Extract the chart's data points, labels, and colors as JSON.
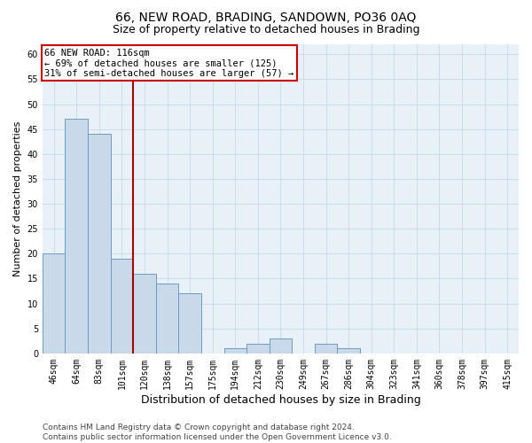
{
  "title1": "66, NEW ROAD, BRADING, SANDOWN, PO36 0AQ",
  "title2": "Size of property relative to detached houses in Brading",
  "xlabel": "Distribution of detached houses by size in Brading",
  "ylabel": "Number of detached properties",
  "categories": [
    "46sqm",
    "64sqm",
    "83sqm",
    "101sqm",
    "120sqm",
    "138sqm",
    "157sqm",
    "175sqm",
    "194sqm",
    "212sqm",
    "230sqm",
    "249sqm",
    "267sqm",
    "286sqm",
    "304sqm",
    "323sqm",
    "341sqm",
    "360sqm",
    "378sqm",
    "397sqm",
    "415sqm"
  ],
  "values": [
    20,
    47,
    44,
    19,
    16,
    14,
    12,
    0,
    1,
    2,
    3,
    0,
    2,
    1,
    0,
    0,
    0,
    0,
    0,
    0,
    0
  ],
  "bar_color": "#c9d9ea",
  "bar_edge_color": "#6b9dc2",
  "vline_color": "#aa0000",
  "vline_x_index": 3.5,
  "annotation_text": "66 NEW ROAD: 116sqm\n← 69% of detached houses are smaller (125)\n31% of semi-detached houses are larger (57) →",
  "annotation_box_color": "white",
  "annotation_box_edge_color": "#cc0000",
  "ylim": [
    0,
    62
  ],
  "yticks": [
    0,
    5,
    10,
    15,
    20,
    25,
    30,
    35,
    40,
    45,
    50,
    55,
    60
  ],
  "grid_color": "#c8d8e8",
  "background_color": "#e8f0f8",
  "footer_text": "Contains HM Land Registry data © Crown copyright and database right 2024.\nContains public sector information licensed under the Open Government Licence v3.0.",
  "title1_fontsize": 10,
  "title2_fontsize": 9,
  "xlabel_fontsize": 9,
  "ylabel_fontsize": 8,
  "tick_fontsize": 7,
  "annotation_fontsize": 7.5,
  "footer_fontsize": 6.5
}
